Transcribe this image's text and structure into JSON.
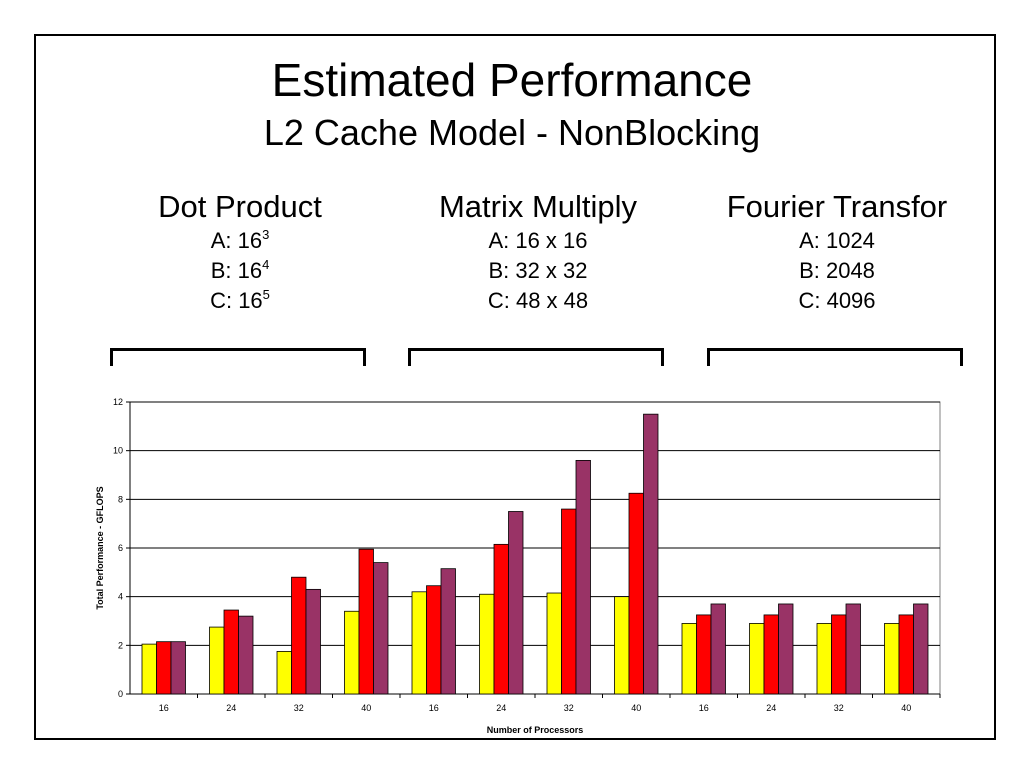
{
  "slide": {
    "title": "Estimated Performance",
    "subtitle": "L2 Cache Model - NonBlocking"
  },
  "groups": [
    {
      "title": "Dot Product",
      "lines": [
        {
          "label": "A: 16",
          "sup": "3"
        },
        {
          "label": "B: 16",
          "sup": "4"
        },
        {
          "label": "C: 16",
          "sup": "5"
        }
      ]
    },
    {
      "title": "Matrix Multiply",
      "lines": [
        {
          "label": "A: 16 x 16",
          "sup": ""
        },
        {
          "label": "B: 32 x 32",
          "sup": ""
        },
        {
          "label": "C: 48 x 48",
          "sup": ""
        }
      ]
    },
    {
      "title": "Fourier Transfor",
      "lines": [
        {
          "label": "A: 1024",
          "sup": ""
        },
        {
          "label": "B: 2048",
          "sup": ""
        },
        {
          "label": "C: 4096",
          "sup": ""
        }
      ]
    }
  ],
  "chart_data": {
    "type": "bar",
    "xlabel": "Number of Processors",
    "ylabel": "Total Performance - GFLOPS",
    "ylim": [
      0,
      12
    ],
    "yticks": [
      0,
      2,
      4,
      6,
      8,
      10,
      12
    ],
    "grid": true,
    "legend": "none",
    "categories": [
      "16",
      "24",
      "32",
      "40",
      "16",
      "24",
      "32",
      "40",
      "16",
      "24",
      "32",
      "40"
    ],
    "series": [
      {
        "color": "#ffff00",
        "values": [
          2.05,
          2.75,
          1.75,
          3.4,
          4.2,
          4.1,
          4.15,
          4.0,
          2.9,
          2.9,
          2.9,
          2.9
        ]
      },
      {
        "color": "#ff0000",
        "values": [
          2.15,
          3.45,
          4.8,
          5.95,
          4.45,
          6.15,
          7.6,
          8.25,
          3.25,
          3.25,
          3.25,
          3.25
        ]
      },
      {
        "color": "#993366",
        "values": [
          2.15,
          3.2,
          4.3,
          5.4,
          5.15,
          7.5,
          9.6,
          11.5,
          3.7,
          3.7,
          3.7,
          3.7
        ]
      }
    ]
  }
}
